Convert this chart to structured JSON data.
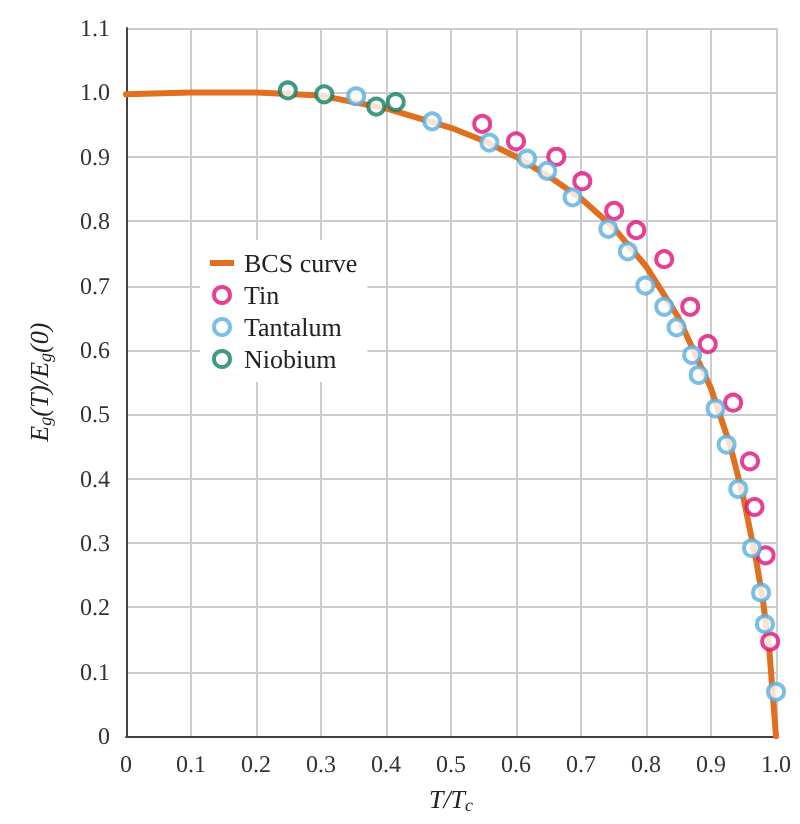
{
  "chart_data": {
    "type": "scatter",
    "xlabel": "T/T$_{c}$",
    "ylabel": "E$_{g}$(T)/E$_{g}$(0)",
    "xlim": [
      0,
      1
    ],
    "xticks": [
      0,
      0.1,
      0.2,
      0.3,
      0.4,
      0.5,
      0.6,
      0.7,
      0.8,
      0.9,
      {
        "value": 1,
        "label": "1.0"
      }
    ],
    "ylim": [
      0,
      1.1
    ],
    "yticks": [
      0,
      0.1,
      0.2,
      0.3,
      0.4,
      0.5,
      0.6,
      0.7,
      0.8,
      0.9,
      {
        "value": 1,
        "label": "1.0"
      },
      1.1
    ],
    "grid": true,
    "legend": "left",
    "marker": "circle",
    "series": [
      {
        "name": "BCS curve",
        "type": "line",
        "marker": "none",
        "color": "#e07020",
        "x": [
          0,
          0.1,
          0.2,
          0.3,
          0.4,
          0.5,
          0.55,
          0.6,
          0.65,
          0.7,
          0.75,
          0.8,
          0.85,
          0.9,
          0.93,
          0.95,
          0.97,
          0.98,
          0.99,
          1.0
        ],
        "values": [
          0.997,
          1.0,
          1.0,
          0.995,
          0.975,
          0.945,
          0.925,
          0.9,
          0.87,
          0.835,
          0.79,
          0.73,
          0.65,
          0.54,
          0.45,
          0.37,
          0.27,
          0.21,
          0.13,
          0
        ]
      },
      {
        "name": "Tin",
        "color": "#e0107a",
        "x": [
          0.548,
          0.6,
          0.662,
          0.702,
          0.751,
          0.785,
          0.828,
          0.868,
          0.895,
          0.934,
          0.96,
          0.967,
          0.984,
          0.991
        ],
        "values": [
          0.951,
          0.924,
          0.9,
          0.862,
          0.816,
          0.786,
          0.741,
          0.667,
          0.609,
          0.518,
          0.427,
          0.356,
          0.281,
          0.147
        ]
      },
      {
        "name": "Tantalum",
        "color": "#5aaee0",
        "x": [
          0.354,
          0.471,
          0.559,
          0.617,
          0.648,
          0.687,
          0.742,
          0.772,
          0.799,
          0.828,
          0.847,
          0.871,
          0.881,
          0.907,
          0.924,
          0.942,
          0.963,
          0.977,
          0.983,
          1.0
        ],
        "values": [
          0.994,
          0.955,
          0.922,
          0.897,
          0.878,
          0.837,
          0.788,
          0.753,
          0.7,
          0.667,
          0.635,
          0.592,
          0.561,
          0.509,
          0.453,
          0.384,
          0.292,
          0.223,
          0.174,
          0.069
        ]
      },
      {
        "name": "Niobium",
        "color": "#108060",
        "x": [
          0.249,
          0.305,
          0.385,
          0.415
        ],
        "values": [
          1.003,
          0.997,
          0.978,
          0.985
        ]
      }
    ]
  }
}
